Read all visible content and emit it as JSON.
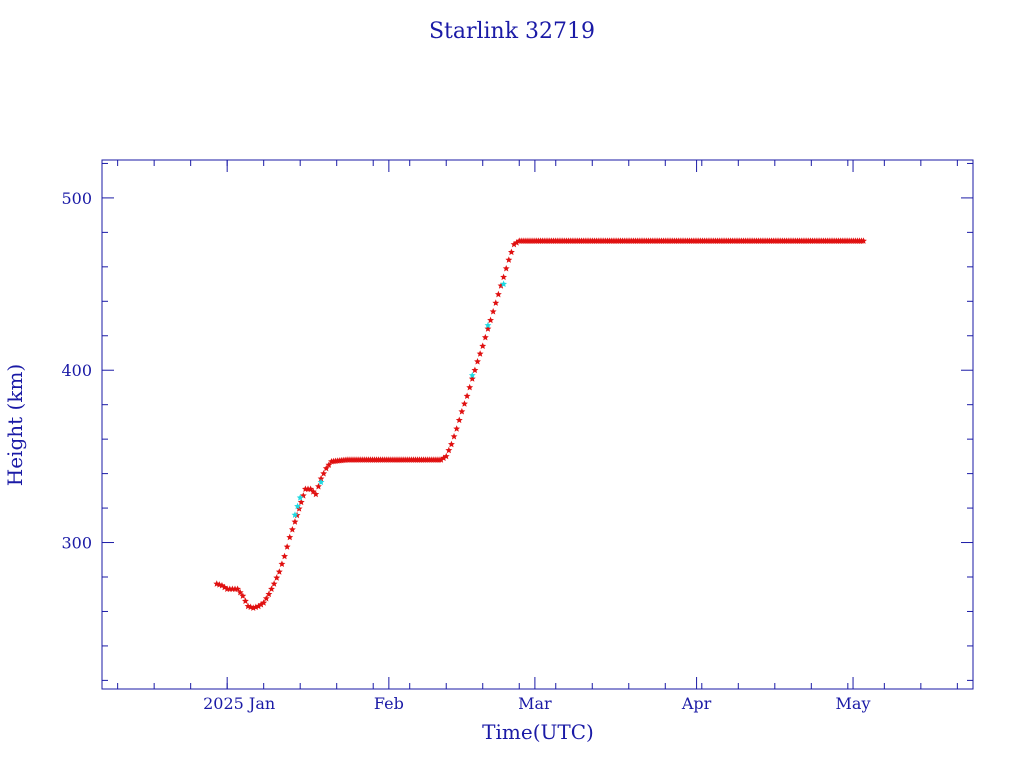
{
  "chart_data": {
    "type": "scatter",
    "title": "Starlink 32719",
    "xlabel": "Time(UTC)",
    "ylabel": "Height (km)",
    "x_tick_labels": [
      {
        "date": "2025-01-01",
        "label": "2025 Jan"
      },
      {
        "date": "2025-02-01",
        "label": "Feb"
      },
      {
        "date": "2025-03-01",
        "label": "Mar"
      },
      {
        "date": "2025-04-01",
        "label": "Apr"
      },
      {
        "date": "2025-05-01",
        "label": "May"
      }
    ],
    "y_tick_labels": [
      300,
      400,
      500
    ],
    "xlim": [
      "2024-12-08",
      "2025-05-24"
    ],
    "ylim": [
      215,
      522
    ],
    "grid": false,
    "colors": {
      "axis": "#1a1aa6",
      "primary": "#e01010",
      "secondary": "#20d8e0"
    },
    "series": [
      {
        "color": "#e01010",
        "points": [
          [
            "2024-12-30",
            276
          ],
          [
            "2024-12-31",
            275
          ],
          [
            "2025-01-01",
            273
          ],
          [
            "2025-01-02",
            273
          ],
          [
            "2025-01-03",
            273
          ],
          [
            "2025-01-04",
            269
          ],
          [
            "2025-01-05",
            263
          ],
          [
            "2025-01-06",
            262
          ],
          [
            "2025-01-07",
            263
          ],
          [
            "2025-01-08",
            265
          ],
          [
            "2025-01-09",
            270
          ],
          [
            "2025-01-10",
            276
          ],
          [
            "2025-01-11",
            283
          ],
          [
            "2025-01-12",
            292
          ],
          [
            "2025-01-13",
            303
          ],
          [
            "2025-01-14",
            312
          ],
          [
            "2025-01-16",
            331
          ],
          [
            "2025-01-17",
            331
          ],
          [
            "2025-01-18",
            328
          ],
          [
            "2025-01-19",
            337
          ],
          [
            "2025-01-20",
            343
          ],
          [
            "2025-01-21",
            347
          ],
          [
            "2025-01-24",
            348
          ],
          [
            "2025-01-27",
            348
          ],
          [
            "2025-01-30",
            348
          ],
          [
            "2025-02-02",
            348
          ],
          [
            "2025-02-05",
            348
          ],
          [
            "2025-02-08",
            348
          ],
          [
            "2025-02-11",
            348
          ],
          [
            "2025-02-12",
            350
          ],
          [
            "2025-02-13",
            357
          ],
          [
            "2025-02-14",
            366
          ],
          [
            "2025-02-15",
            376
          ],
          [
            "2025-02-16",
            385
          ],
          [
            "2025-02-17",
            395
          ],
          [
            "2025-02-18",
            405
          ],
          [
            "2025-02-19",
            414
          ],
          [
            "2025-02-20",
            424
          ],
          [
            "2025-02-21",
            434
          ],
          [
            "2025-02-22",
            444
          ],
          [
            "2025-02-23",
            454
          ],
          [
            "2025-02-24",
            464
          ],
          [
            "2025-02-25",
            473
          ],
          [
            "2025-02-26",
            475
          ],
          [
            "2025-03-01",
            475
          ],
          [
            "2025-03-06",
            475
          ],
          [
            "2025-03-11",
            475
          ],
          [
            "2025-03-16",
            475
          ],
          [
            "2025-03-21",
            475
          ],
          [
            "2025-03-26",
            475
          ],
          [
            "2025-03-31",
            475
          ],
          [
            "2025-04-05",
            475
          ],
          [
            "2025-04-10",
            475
          ],
          [
            "2025-04-15",
            475
          ],
          [
            "2025-04-20",
            475
          ],
          [
            "2025-04-25",
            475
          ],
          [
            "2025-04-30",
            475
          ],
          [
            "2025-05-03",
            475
          ]
        ]
      },
      {
        "color": "#20d8e0",
        "points": [
          [
            "2025-01-14",
            316
          ],
          [
            "2025-01-15",
            326
          ],
          [
            "2025-01-19",
            335
          ],
          [
            "2025-02-17",
            397
          ],
          [
            "2025-02-20",
            426
          ],
          [
            "2025-02-23",
            450
          ]
        ]
      }
    ]
  }
}
